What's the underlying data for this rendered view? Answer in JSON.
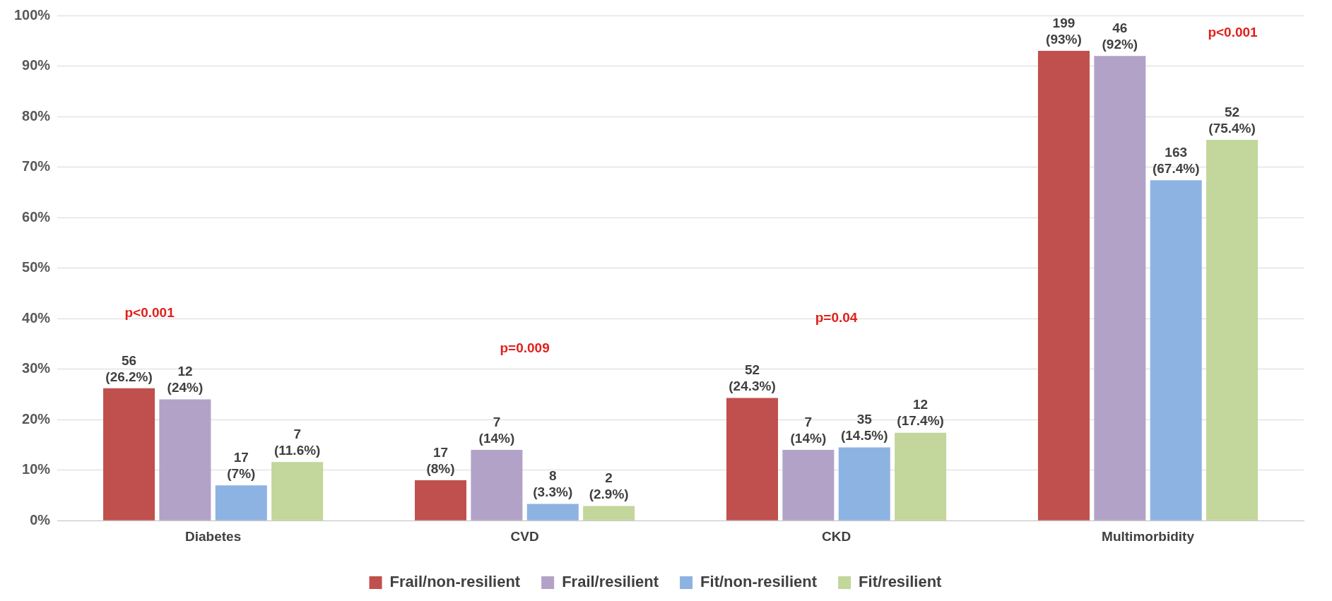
{
  "chart_data": {
    "type": "bar",
    "categories": [
      "Diabetes",
      "CVD",
      "CKD",
      "Multimorbidity"
    ],
    "series": [
      {
        "name": "Frail/non-resilient",
        "color": "#c0504d",
        "values": [
          26.2,
          8,
          24.3,
          93
        ],
        "value_labels": [
          "56\n(26.2%)",
          "17\n(8%)",
          "52\n(24.3%)",
          "199\n(93%)"
        ]
      },
      {
        "name": "Frail/resilient",
        "color": "#b3a2c7",
        "values": [
          24,
          14,
          14,
          92
        ],
        "value_labels": [
          "12\n(24%)",
          "7\n(14%)",
          "7\n(14%)",
          "46\n(92%)"
        ]
      },
      {
        "name": "Fit/non-resilient",
        "color": "#8db3e2",
        "values": [
          7,
          3.3,
          14.5,
          67.4
        ],
        "value_labels": [
          "17\n(7%)",
          "8\n(3.3%)",
          "35\n(14.5%)",
          "163\n(67.4%)"
        ]
      },
      {
        "name": "Fit/resilient",
        "color": "#c3d69b",
        "values": [
          11.6,
          2.9,
          17.4,
          75.4
        ],
        "value_labels": [
          "7\n(11.6%)",
          "2\n(2.9%)",
          "12\n(17.4%)",
          "52\n(75.4%)"
        ]
      }
    ],
    "ylim": [
      0,
      100
    ],
    "yticks": [
      {
        "value": 0,
        "label": "0%"
      },
      {
        "value": 10,
        "label": "10%"
      },
      {
        "value": 20,
        "label": "20%"
      },
      {
        "value": 30,
        "label": "30%"
      },
      {
        "value": 40,
        "label": "40%"
      },
      {
        "value": 50,
        "label": "50%"
      },
      {
        "value": 60,
        "label": "60%"
      },
      {
        "value": 70,
        "label": "70%"
      },
      {
        "value": 80,
        "label": "80%"
      },
      {
        "value": 90,
        "label": "90%"
      },
      {
        "value": 100,
        "label": "100%"
      }
    ],
    "annotations": [
      "p<0.001",
      "p=0.009",
      "p=0.04",
      "p<0.001"
    ],
    "grid": "y",
    "legend": "bottom"
  }
}
